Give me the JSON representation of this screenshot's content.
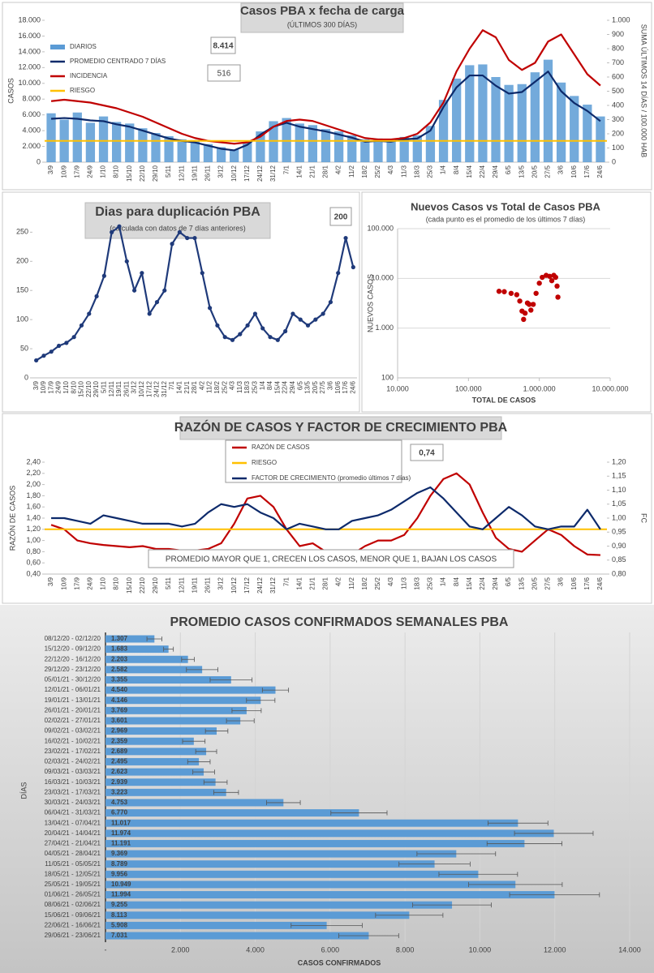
{
  "chart_data": [
    {
      "type": "combo",
      "title": "Casos PBA x fecha de carga",
      "subtitle": "(ÚLTIMOS 300 DÍAS)",
      "y_label": "CASOS",
      "y2_label": "SUMA ÚLTIMOS 14 DÍAS / 100.000 HAB",
      "categories": [
        "3/9",
        "10/9",
        "17/9",
        "24/9",
        "1/10",
        "8/10",
        "15/10",
        "22/10",
        "29/10",
        "5/11",
        "12/11",
        "19/11",
        "26/11",
        "3/12",
        "10/12",
        "17/12",
        "24/12",
        "31/12",
        "7/1",
        "14/1",
        "21/1",
        "28/1",
        "4/2",
        "11/2",
        "18/2",
        "25/2",
        "4/3",
        "11/3",
        "18/3",
        "25/3",
        "1/4",
        "8/4",
        "15/4",
        "22/4",
        "29/4",
        "6/5",
        "13/5",
        "20/5",
        "27/5",
        "3/6",
        "10/6",
        "17/6",
        "24/6"
      ],
      "series": [
        {
          "name": "DIARIOS",
          "type": "bar",
          "color": "#5b9bd5",
          "values": [
            6200,
            5400,
            6300,
            5000,
            5800,
            5100,
            4900,
            4300,
            3700,
            3300,
            2900,
            2800,
            2300,
            1900,
            1600,
            2500,
            3900,
            5200,
            5600,
            4900,
            4700,
            4200,
            3900,
            3400,
            2900,
            3000,
            2800,
            3200,
            3400,
            4600,
            7900,
            10600,
            12300,
            12400,
            10800,
            9800,
            9900,
            11400,
            13000,
            10100,
            8400,
            7300,
            5800
          ]
        },
        {
          "name": "PROMEDIO CENTRADO 7 DÍAS",
          "type": "line",
          "color": "#0d2a6b",
          "values": [
            5500,
            5600,
            5500,
            5300,
            5200,
            4800,
            4500,
            4000,
            3500,
            3000,
            2700,
            2500,
            2100,
            1700,
            1500,
            2200,
            3500,
            4500,
            5000,
            4500,
            4200,
            3900,
            3500,
            3100,
            2600,
            2700,
            2600,
            2900,
            3000,
            4000,
            7000,
            9500,
            11000,
            11000,
            9700,
            8700,
            8900,
            10200,
            11500,
            9000,
            7500,
            6500,
            5200
          ]
        },
        {
          "name": "INCIDENCIA",
          "type": "line",
          "axis": "y2",
          "color": "#c00000",
          "values": [
            430,
            440,
            430,
            420,
            400,
            380,
            350,
            320,
            280,
            240,
            200,
            170,
            150,
            140,
            130,
            140,
            180,
            250,
            290,
            300,
            290,
            260,
            230,
            200,
            170,
            160,
            160,
            170,
            200,
            280,
            420,
            640,
            800,
            930,
            880,
            720,
            650,
            700,
            850,
            900,
            760,
            620,
            540
          ]
        },
        {
          "name": "RIESGO",
          "type": "line",
          "color": "#ffc000",
          "value": 2700
        }
      ],
      "annotations": [
        "8.414",
        "516"
      ],
      "ylim": [
        0,
        18000
      ],
      "yticks": [
        0,
        {
          "value": 2000,
          "label": "2.000"
        },
        {
          "value": 4000,
          "label": "4.000"
        },
        {
          "value": 6000,
          "label": "6.000"
        },
        {
          "value": 8000,
          "label": "8.000"
        },
        {
          "value": 10000,
          "label": "10.000"
        },
        {
          "value": 12000,
          "label": "12.000"
        },
        {
          "value": 14000,
          "label": "14.000"
        },
        {
          "value": 16000,
          "label": "16.000"
        },
        {
          "value": 18000,
          "label": "18.000"
        }
      ],
      "y2lim": [
        0,
        1000
      ],
      "y2ticks": [
        0,
        100,
        200,
        300,
        400,
        500,
        600,
        700,
        800,
        900,
        {
          "value": 1000,
          "label": "1.000"
        }
      ],
      "grid": false
    },
    {
      "type": "line",
      "title": "Dias para duplicación PBA",
      "subtitle": "(calculada con datos de 7 días anteriores)",
      "categories": [
        "3/9",
        "10/9",
        "17/9",
        "24/9",
        "1/10",
        "8/10",
        "15/10",
        "22/10",
        "29/10",
        "5/11",
        "12/11",
        "19/11",
        "26/11",
        "3/12",
        "10/12",
        "17/12",
        "24/12",
        "31/12",
        "7/1",
        "14/1",
        "21/1",
        "28/1",
        "4/2",
        "11/2",
        "18/2",
        "25/2",
        "4/3",
        "11/3",
        "18/3",
        "25/3",
        "1/4",
        "8/4",
        "15/4",
        "22/4",
        "29/4",
        "6/5",
        "13/5",
        "20/5",
        "27/5",
        "3/6",
        "10/6",
        "17/6",
        "24/6"
      ],
      "series": [
        {
          "type": "line",
          "markers": true,
          "color": "#1f3a7a",
          "values": [
            30,
            38,
            45,
            55,
            60,
            70,
            90,
            110,
            140,
            175,
            250,
            260,
            200,
            150,
            180,
            110,
            130,
            150,
            230,
            250,
            240,
            240,
            180,
            120,
            90,
            70,
            65,
            75,
            90,
            110,
            85,
            70,
            65,
            80,
            110,
            100,
            90,
            100,
            110,
            130,
            180,
            240,
            190
          ]
        }
      ],
      "annotations": [
        "200"
      ],
      "ylim": [
        0,
        270
      ],
      "yticks": [
        0,
        50,
        100,
        150,
        200,
        250
      ],
      "grid": false
    },
    {
      "type": "scatter",
      "title": "Nuevos Casos vs Total de Casos PBA",
      "subtitle": "(cada punto es el promedio de los últimos 7 días)",
      "x_label": "TOTAL DE CASOS",
      "y_label": "NUEVOS CASOS",
      "color": "#c00000",
      "x": [
        270000,
        320000,
        400000,
        480000,
        530000,
        570000,
        600000,
        630000,
        680000,
        720000,
        760000,
        820000,
        900000,
        1000000,
        1100000,
        1250000,
        1400000,
        1500000,
        1600000,
        1700000,
        1780000,
        1830000
      ],
      "values": [
        5500,
        5400,
        5000,
        4700,
        3500,
        2200,
        1500,
        2000,
        3200,
        3000,
        2300,
        3000,
        5000,
        8000,
        10500,
        11500,
        11000,
        9000,
        11500,
        10500,
        7000,
        4200
      ],
      "xscale": "log",
      "yscale": "log",
      "xlim": [
        10000,
        10000000
      ],
      "xticks": [
        {
          "value": 10000,
          "label": "10.000"
        },
        {
          "value": 100000,
          "label": "100.000"
        },
        {
          "value": 1000000,
          "label": "1.000.000"
        },
        {
          "value": 10000000,
          "label": "10.000.000"
        }
      ],
      "ylim": [
        100,
        100000
      ],
      "yticks": [
        100,
        {
          "value": 1000,
          "label": "1.000"
        },
        {
          "value": 10000,
          "label": "10.000"
        },
        {
          "value": 100000,
          "label": "100.000"
        }
      ],
      "grid": true
    },
    {
      "type": "combo",
      "title": "RAZÓN DE CASOS Y FACTOR DE CRECIMIENTO PBA",
      "y_label": "RAZÓN DE CASOS",
      "y2_label": "FC",
      "categories": [
        "3/9",
        "10/9",
        "17/9",
        "24/9",
        "1/10",
        "8/10",
        "15/10",
        "22/10",
        "29/10",
        "5/11",
        "12/11",
        "19/11",
        "26/11",
        "3/12",
        "10/12",
        "17/12",
        "24/12",
        "31/12",
        "7/1",
        "14/1",
        "21/1",
        "28/1",
        "4/2",
        "11/2",
        "18/2",
        "25/2",
        "4/3",
        "11/3",
        "18/3",
        "25/3",
        "1/4",
        "8/4",
        "15/4",
        "22/4",
        "29/4",
        "6/5",
        "13/5",
        "20/5",
        "27/5",
        "3/6",
        "10/6",
        "17/6",
        "24/6"
      ],
      "series": [
        {
          "name": "RAZÓN DE CASOS",
          "type": "line",
          "color": "#c00000",
          "values": [
            1.28,
            1.2,
            1.0,
            0.95,
            0.92,
            0.9,
            0.88,
            0.9,
            0.85,
            0.85,
            0.82,
            0.82,
            0.85,
            0.95,
            1.3,
            1.75,
            1.8,
            1.6,
            1.2,
            0.9,
            0.95,
            0.8,
            0.75,
            0.75,
            0.9,
            1.0,
            1.0,
            1.1,
            1.4,
            1.8,
            2.1,
            2.2,
            2.0,
            1.5,
            1.05,
            0.85,
            0.8,
            1.0,
            1.2,
            1.1,
            0.9,
            0.75,
            0.74
          ]
        },
        {
          "name": "RIESGO",
          "type": "line",
          "color": "#ffc000",
          "value": 1.2
        },
        {
          "name": "FACTOR DE CRECIMIENTO (promedio últimos 7 días)",
          "type": "line",
          "axis": "y2",
          "color": "#0d2a6b",
          "values": [
            1.0,
            1.0,
            0.99,
            0.98,
            1.01,
            1.0,
            0.99,
            0.98,
            0.98,
            0.98,
            0.97,
            0.98,
            1.02,
            1.05,
            1.04,
            1.05,
            1.02,
            1.0,
            0.96,
            0.98,
            0.97,
            0.96,
            0.96,
            0.99,
            1.0,
            1.01,
            1.03,
            1.06,
            1.09,
            1.11,
            1.07,
            1.02,
            0.97,
            0.96,
            1.0,
            1.04,
            1.01,
            0.97,
            0.96,
            0.97,
            0.97,
            1.03,
            0.96
          ]
        }
      ],
      "annotations": [
        "0,74",
        "PROMEDIO MAYOR QUE 1, CRECEN LOS CASOS, MENOR QUE 1, BAJAN LOS CASOS"
      ],
      "ylim": [
        0.4,
        2.4
      ],
      "yticks": [
        {
          "value": 0.4,
          "label": "0,40"
        },
        {
          "value": 0.6,
          "label": "0,60"
        },
        {
          "value": 0.8,
          "label": "0,80"
        },
        {
          "value": 1.0,
          "label": "1,00"
        },
        {
          "value": 1.2,
          "label": "1,20"
        },
        {
          "value": 1.4,
          "label": "1,40"
        },
        {
          "value": 1.6,
          "label": "1,60"
        },
        {
          "value": 1.8,
          "label": "1,80"
        },
        {
          "value": 2.0,
          "label": "2,00"
        },
        {
          "value": 2.2,
          "label": "2,20"
        },
        {
          "value": 2.4,
          "label": "2,40"
        }
      ],
      "y2lim": [
        0.8,
        1.2
      ],
      "y2ticks": [
        {
          "value": 0.8,
          "label": "0,80"
        },
        {
          "value": 0.85,
          "label": "0,85"
        },
        {
          "value": 0.9,
          "label": "0,90"
        },
        {
          "value": 0.95,
          "label": "0,95"
        },
        {
          "value": 1.0,
          "label": "1,00"
        },
        {
          "value": 1.05,
          "label": "1,05"
        },
        {
          "value": 1.1,
          "label": "1,10"
        },
        {
          "value": 1.15,
          "label": "1,15"
        },
        {
          "value": 1.2,
          "label": "1,20"
        }
      ],
      "grid": false
    },
    {
      "type": "bar",
      "orientation": "horizontal",
      "title": "PROMEDIO CASOS CONFIRMADOS SEMANALES PBA",
      "x_label": "CASOS CONFIRMADOS",
      "y_label": "DÍAS",
      "color": "#5b9bd5",
      "categories": [
        "08/12/20 - 02/12/20",
        "15/12/20 - 09/12/20",
        "22/12/20 - 16/12/20",
        "29/12/20 - 23/12/20",
        "05/01/21 - 30/12/20",
        "12/01/21 - 06/01/21",
        "19/01/21 - 13/01/21",
        "26/01/21 - 20/01/21",
        "02/02/21 - 27/01/21",
        "09/02/21 - 03/02/21",
        "16/02/21 - 10/02/21",
        "23/02/21 - 17/02/21",
        "02/03/21 - 24/02/21",
        "09/03/21 - 03/03/21",
        "16/03/21 - 10/03/21",
        "23/03/21 - 17/03/21",
        "30/03/21 - 24/03/21",
        "06/04/21 - 31/03/21",
        "13/04/21 - 07/04/21",
        "20/04/21 - 14/04/21",
        "27/04/21 - 21/04/21",
        "04/05/21 - 28/04/21",
        "11/05/21 - 05/05/21",
        "18/05/21 - 12/05/21",
        "25/05/21 - 19/05/21",
        "01/06/21 - 26/05/21",
        "08/06/21 - 02/06/21",
        "15/06/21 - 09/06/21",
        "22/06/21 - 16/06/21",
        "29/06/21 - 23/06/21"
      ],
      "values": [
        1307,
        1683,
        2203,
        2582,
        3355,
        4540,
        4146,
        3769,
        3601,
        2969,
        2359,
        2689,
        2495,
        2623,
        2939,
        3223,
        4753,
        6770,
        11017,
        11974,
        11191,
        9369,
        8789,
        9956,
        10949,
        11994,
        9255,
        8113,
        5908,
        7031
      ],
      "value_labels": [
        "1.307",
        "1.683",
        "2.203",
        "2.582",
        "3.355",
        "4.540",
        "4.146",
        "3.769",
        "3.601",
        "2.969",
        "2.359",
        "2.689",
        "2.495",
        "2.623",
        "2.939",
        "3.223",
        "4.753",
        "6.770",
        "11.017",
        "11.974",
        "11.191",
        "9.369",
        "8.789",
        "9.956",
        "10.949",
        "11.994",
        "9.255",
        "8.113",
        "5.908",
        "7.031"
      ],
      "errors": [
        200,
        130,
        170,
        420,
        560,
        350,
        380,
        390,
        370,
        300,
        300,
        280,
        300,
        290,
        310,
        330,
        450,
        750,
        800,
        1050,
        1000,
        1050,
        950,
        1050,
        1250,
        1200,
        1050,
        900,
        950,
        800
      ],
      "xlim": [
        0,
        14000
      ],
      "xticks": [
        {
          "value": 0,
          "label": "-"
        },
        {
          "value": 2000,
          "label": "2.000"
        },
        {
          "value": 4000,
          "label": "4.000"
        },
        {
          "value": 6000,
          "label": "6.000"
        },
        {
          "value": 8000,
          "label": "8.000"
        },
        {
          "value": 10000,
          "label": "10.000"
        },
        {
          "value": 12000,
          "label": "12.000"
        },
        {
          "value": 14000,
          "label": "14.000"
        }
      ],
      "grid": true
    }
  ]
}
